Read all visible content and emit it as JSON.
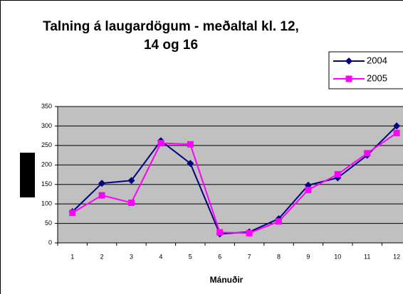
{
  "chart_data": {
    "type": "line",
    "title": [
      "Talning á laugardögum - meðaltal kl. 12,",
      "14 og 16"
    ],
    "x_label": "Mánuðir",
    "categories": [
      "1",
      "2",
      "3",
      "4",
      "5",
      "6",
      "7",
      "8",
      "9",
      "10",
      "11",
      "12"
    ],
    "series": [
      {
        "name": "2004",
        "color": "#000080",
        "marker": "diamond",
        "values": [
          80,
          153,
          160,
          262,
          204,
          23,
          28,
          62,
          148,
          167,
          225,
          300
        ]
      },
      {
        "name": "2005",
        "color": "#ff00ff",
        "marker": "square",
        "values": [
          77,
          122,
          103,
          256,
          253,
          27,
          25,
          55,
          136,
          176,
          230,
          282
        ]
      }
    ],
    "ylim": [
      0,
      350
    ],
    "yticks": [
      0,
      50,
      100,
      150,
      200,
      250,
      300,
      350
    ],
    "grid": true,
    "legend": "top-right"
  }
}
